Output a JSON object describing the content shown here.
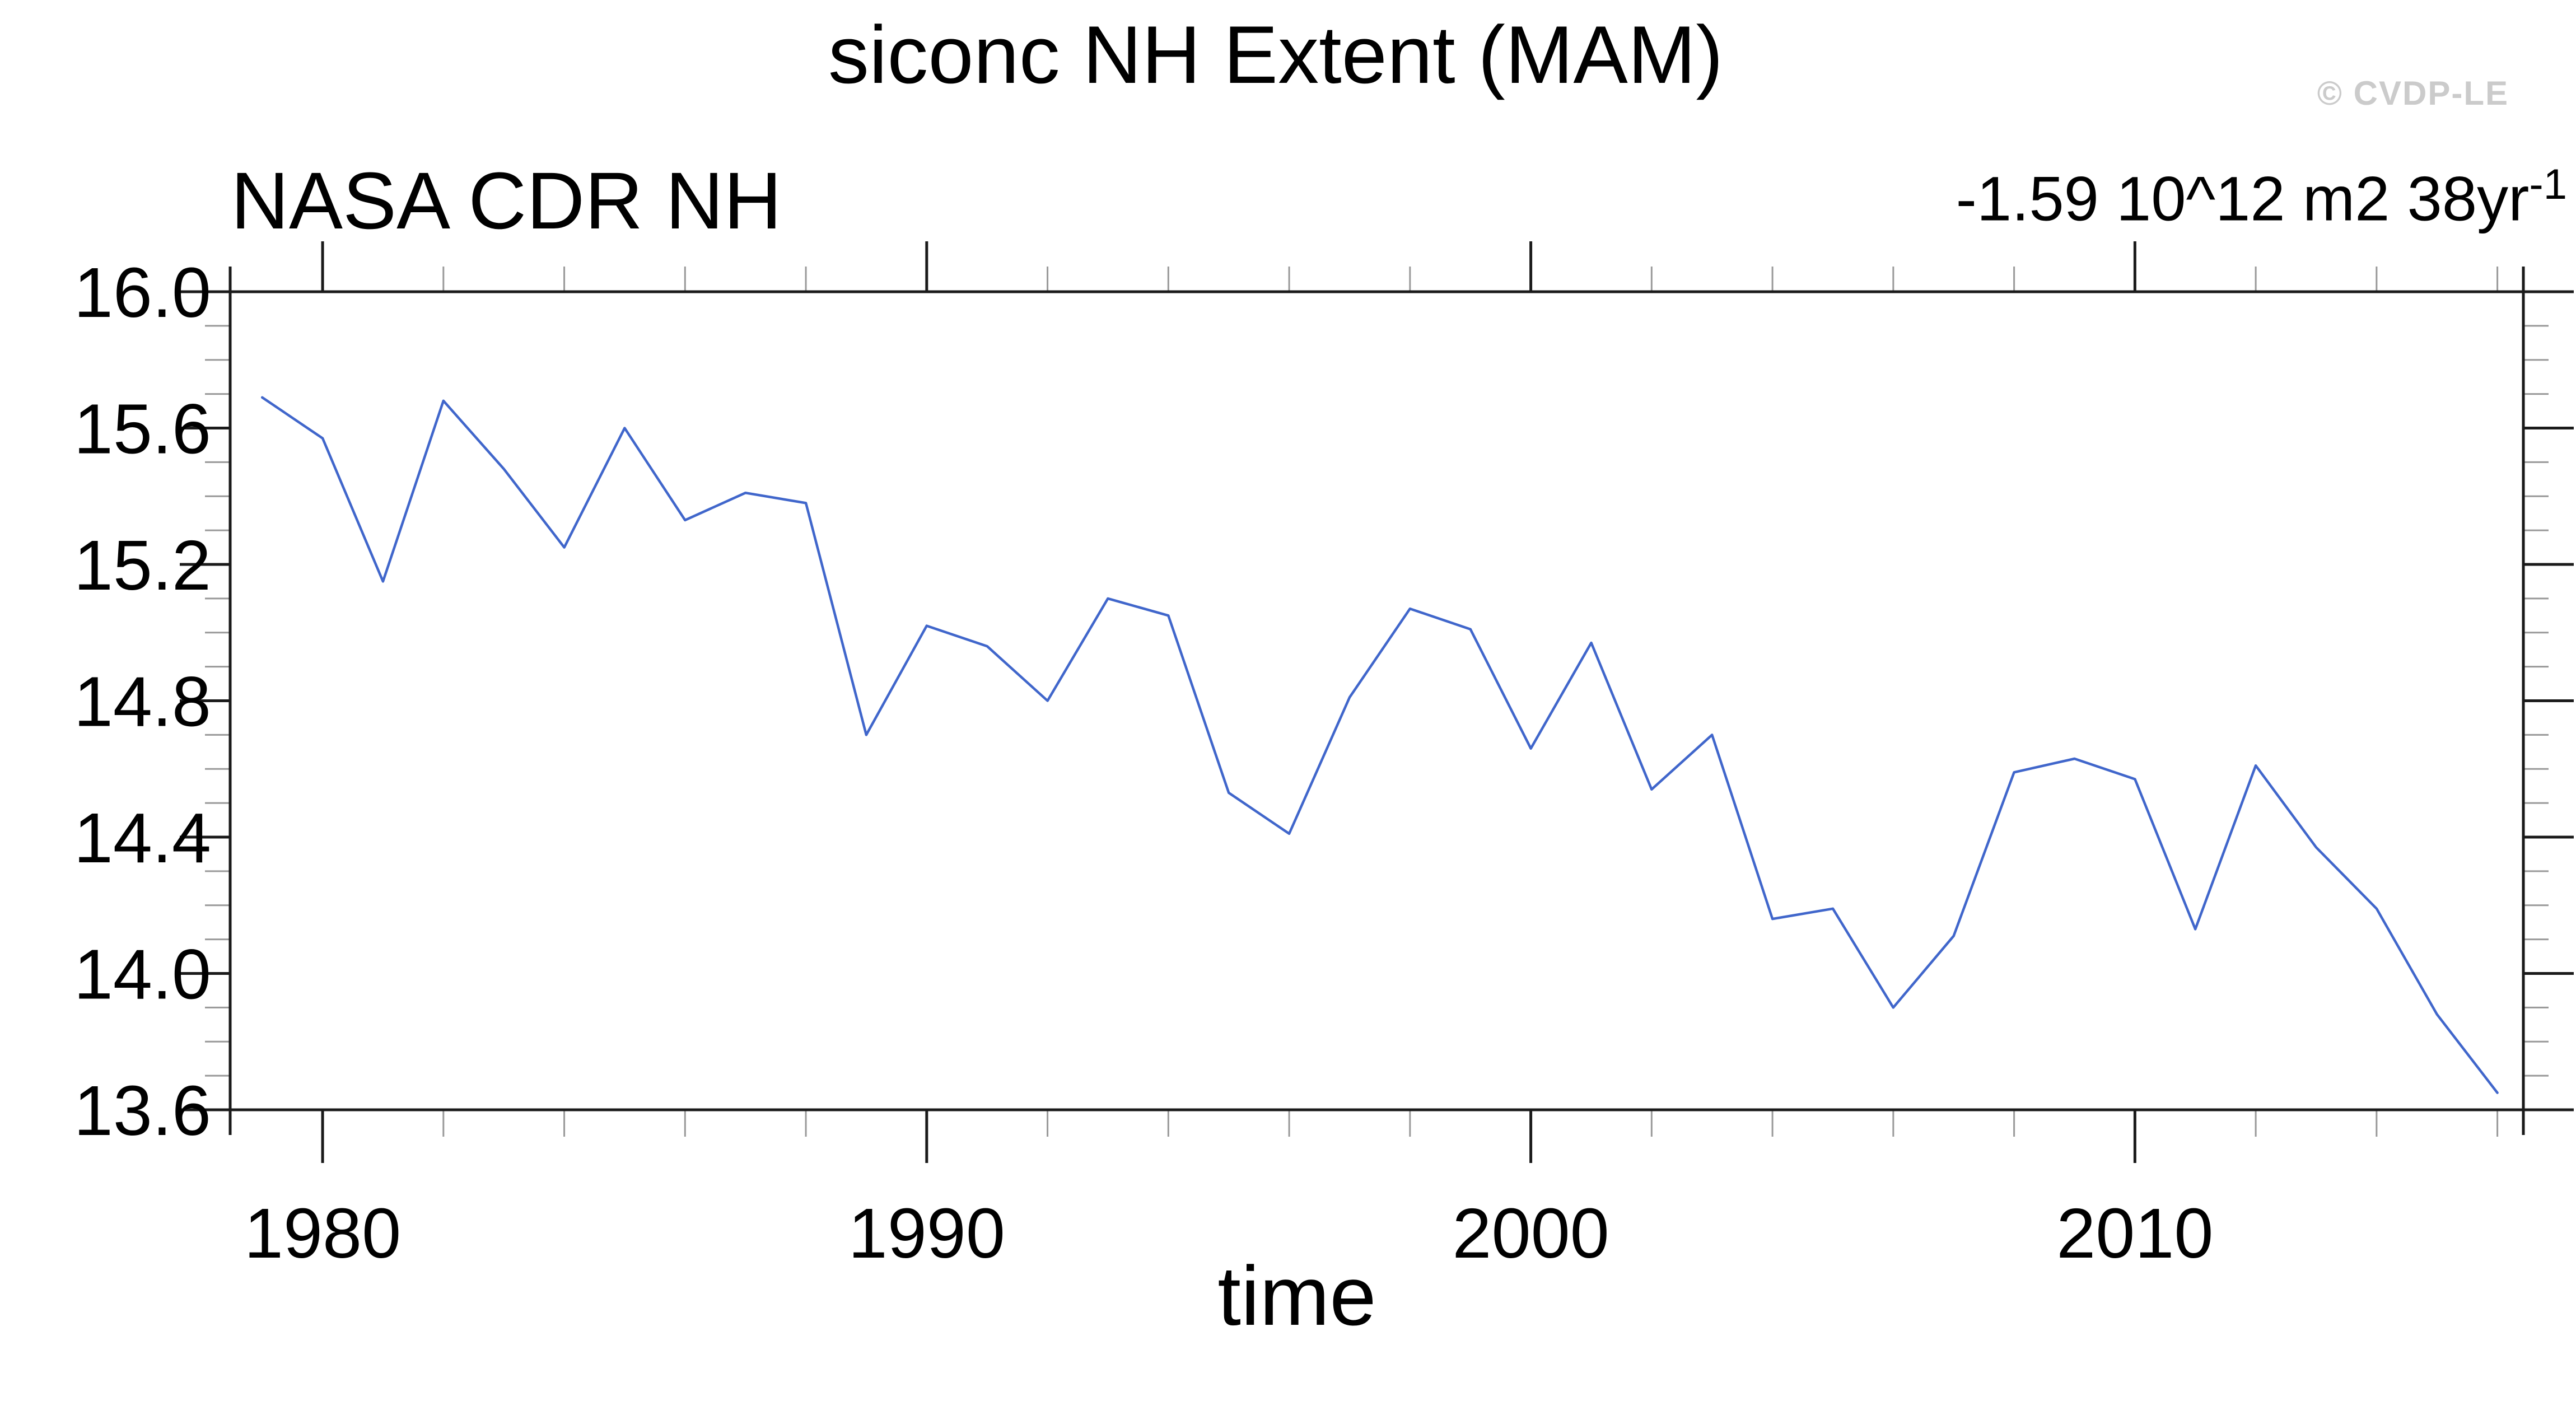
{
  "page": {
    "background": "#ffffff"
  },
  "chart_data": {
    "type": "line",
    "title": "siconc NH Extent (MAM)",
    "left_header": "NASA CDR NH",
    "trend_annotation": {
      "main": "-1.59 10^12 m2 38yr",
      "superscript": "-1"
    },
    "watermark": "© CVDP-LE",
    "xlabel": "time",
    "ylabel": "",
    "xlim": [
      1978.47,
      2016.43
    ],
    "ylim": [
      13.6,
      16.0
    ],
    "grid": false,
    "legend_position": "none",
    "tick_style": "outward-all-four-sides",
    "line_color": "#4066cb",
    "axis_color": "#1a1a1a",
    "minor_tick_color": "#999999",
    "xticks_major": [
      1980,
      1990,
      2000,
      2010
    ],
    "xtick_labels": [
      "1980",
      "1990",
      "2000",
      "2010"
    ],
    "xticks_minor": [
      1982,
      1984,
      1986,
      1988,
      1992,
      1994,
      1996,
      1998,
      2002,
      2004,
      2006,
      2008,
      2012,
      2014,
      2016
    ],
    "yticks_major": [
      13.6,
      14.0,
      14.4,
      14.8,
      15.2,
      15.6,
      16.0
    ],
    "ytick_labels": [
      "13.6",
      "14.0",
      "14.4",
      "14.8",
      "15.2",
      "15.6",
      "16.0"
    ],
    "yticks_minor": [
      13.7,
      13.8,
      13.9,
      14.1,
      14.2,
      14.3,
      14.5,
      14.6,
      14.7,
      14.9,
      15.0,
      15.1,
      15.3,
      15.4,
      15.5,
      15.7,
      15.8,
      15.9
    ],
    "series": [
      {
        "name": "NASA CDR NH",
        "x": [
          1979,
          1980,
          1981,
          1982,
          1983,
          1984,
          1985,
          1986,
          1987,
          1988,
          1989,
          1990,
          1991,
          1992,
          1993,
          1994,
          1995,
          1996,
          1997,
          1998,
          1999,
          2000,
          2001,
          2002,
          2003,
          2004,
          2005,
          2006,
          2007,
          2008,
          2009,
          2010,
          2011,
          2012,
          2013,
          2014,
          2015,
          2016
        ],
        "values": [
          15.69,
          15.57,
          15.15,
          15.68,
          15.48,
          15.25,
          15.6,
          15.33,
          15.41,
          15.38,
          14.7,
          15.02,
          14.96,
          14.8,
          15.1,
          15.05,
          14.53,
          14.41,
          14.81,
          15.07,
          15.01,
          14.66,
          14.97,
          14.54,
          14.7,
          14.16,
          14.19,
          13.9,
          14.11,
          14.59,
          14.63,
          14.57,
          14.13,
          14.61,
          14.37,
          14.19,
          13.88,
          13.65
        ]
      }
    ]
  }
}
